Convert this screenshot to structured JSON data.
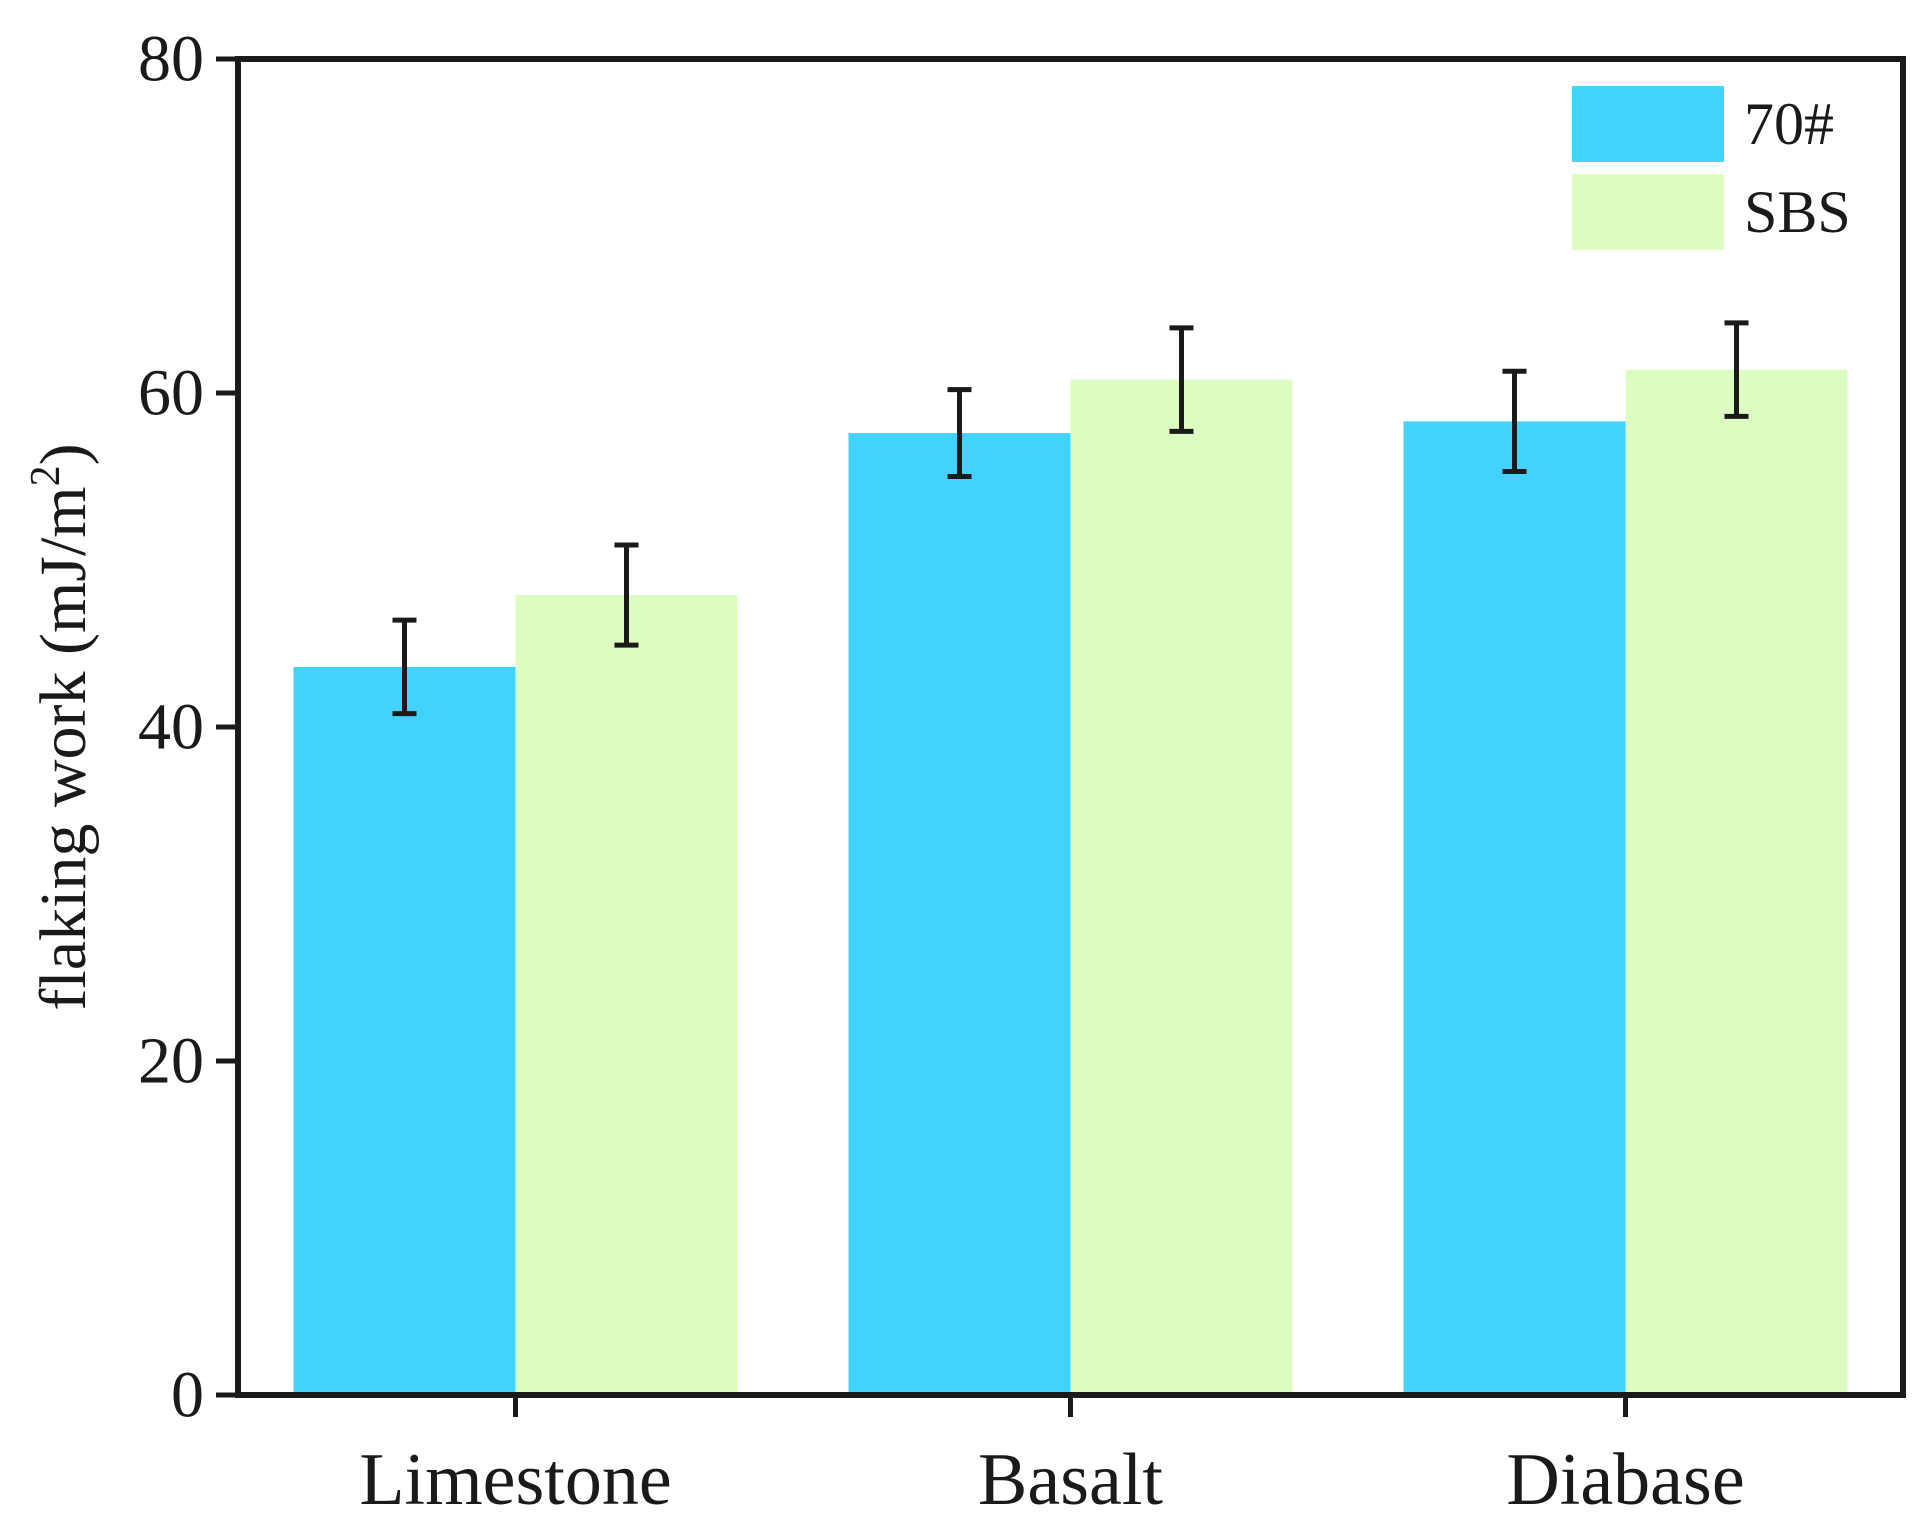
{
  "chart_data": {
    "type": "bar",
    "title": "",
    "xlabel": "",
    "ylabel": {
      "prefix": "flaking work (mJ/m",
      "superscript": "2",
      "suffix": ")"
    },
    "ylim": [
      0,
      80
    ],
    "yticks": [
      "0",
      "20",
      "40",
      "60",
      "80"
    ],
    "categories": [
      "Limestone",
      "Basalt",
      "Diabase"
    ],
    "series": [
      {
        "name": "70#",
        "color": "#41d3fb",
        "values": [
          43.6,
          57.6,
          58.3
        ],
        "errors": [
          2.8,
          2.6,
          3.0
        ]
      },
      {
        "name": "SBS",
        "color": "#ddfcc2",
        "values": [
          47.9,
          60.8,
          61.4
        ],
        "errors": [
          3.0,
          3.1,
          2.8
        ]
      }
    ],
    "legend_position": "top-right",
    "grid": false
  }
}
